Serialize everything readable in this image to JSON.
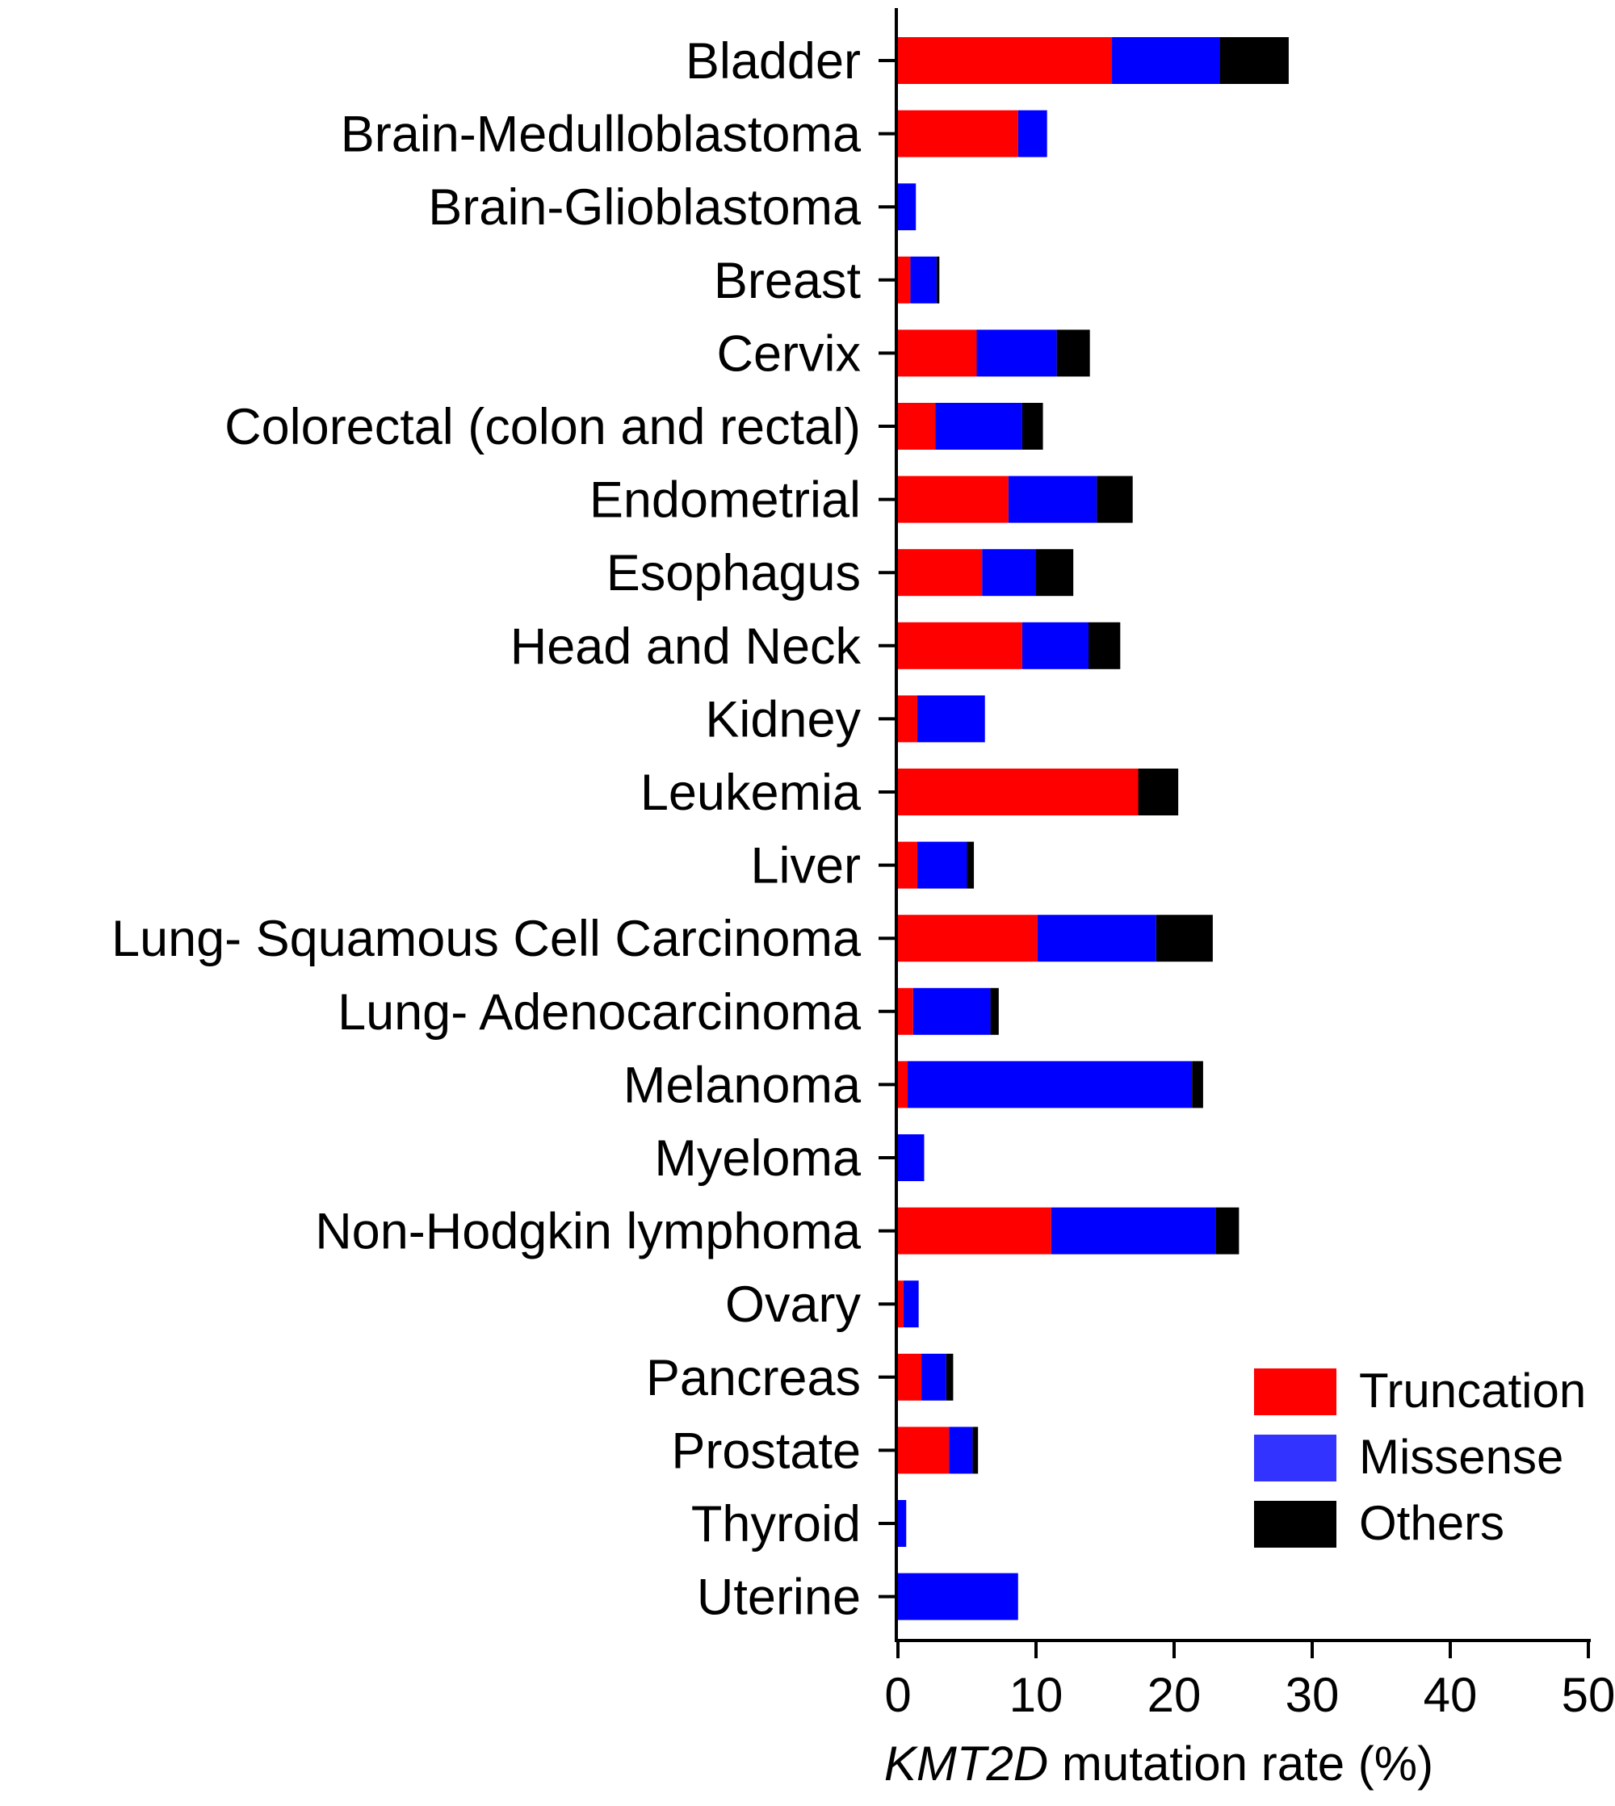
{
  "chart_data": {
    "type": "bar",
    "orientation": "horizontal",
    "stacked": true,
    "categories": [
      "Bladder",
      "Brain-Medulloblastoma",
      "Brain-Glioblastoma",
      "Breast",
      "Cervix",
      "Colorectal (colon and rectal)",
      "Endometrial",
      "Esophagus",
      "Head and Neck",
      "Kidney",
      "Leukemia",
      "Liver",
      "Lung- Squamous Cell Carcinoma",
      "Lung- Adenocarcinoma",
      "Melanoma",
      "Myeloma",
      "Non-Hodgkin lymphoma",
      "Ovary",
      "Pancreas",
      "Prostate",
      "Thyroid",
      "Uterine"
    ],
    "series": [
      {
        "name": "Truncation",
        "color": "#ff0000",
        "values": [
          15.5,
          8.7,
          0.0,
          0.9,
          5.7,
          2.7,
          8.0,
          6.1,
          9.0,
          1.4,
          17.4,
          1.4,
          10.1,
          1.1,
          0.7,
          0.0,
          11.1,
          0.4,
          1.7,
          3.7,
          0.0,
          0.0
        ]
      },
      {
        "name": "Missense",
        "color": "#0000ff",
        "values": [
          7.8,
          2.1,
          1.3,
          1.9,
          5.8,
          6.3,
          6.4,
          3.9,
          4.8,
          4.9,
          0.0,
          3.6,
          8.6,
          5.6,
          20.6,
          1.9,
          11.9,
          1.1,
          1.8,
          1.7,
          0.6,
          8.7
        ]
      },
      {
        "name": "Others",
        "color": "#000000",
        "values": [
          5.0,
          0.0,
          0.0,
          0.2,
          2.4,
          1.5,
          2.6,
          2.7,
          2.3,
          0.0,
          2.9,
          0.5,
          4.1,
          0.6,
          0.8,
          0.0,
          1.7,
          0.0,
          0.5,
          0.4,
          0.0,
          0.0
        ]
      }
    ],
    "xlim": [
      0,
      50
    ],
    "xticks": [
      "0",
      "10",
      "20",
      "30",
      "40",
      "50"
    ],
    "xlabel_italic": "KMT2D",
    "xlabel_rest": " mutation rate (%)",
    "legend": {
      "placement": "bottom-right",
      "entries": [
        {
          "label": "Truncation",
          "color": "#ff0000"
        },
        {
          "label": "Missense",
          "color": "#3333ff"
        },
        {
          "label": "Others",
          "color": "#000000"
        }
      ]
    },
    "grid": false
  }
}
